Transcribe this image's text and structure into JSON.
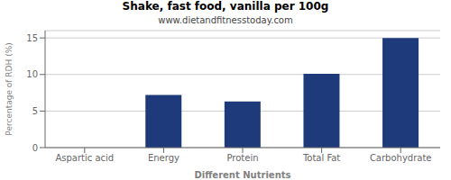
{
  "chart_data": {
    "type": "bar",
    "title": "Shake, fast food, vanilla per 100g",
    "subtitle": "www.dietandfitnesstoday.com",
    "xlabel": "Different Nutrients",
    "ylabel": "Percentage of RDH (%)",
    "categories": [
      "Aspartic acid",
      "Energy",
      "Protein",
      "Total Fat",
      "Carbohydrate"
    ],
    "values": [
      0,
      7.2,
      6.3,
      10.1,
      15.0
    ],
    "color": "#1e3a7a",
    "ylim": [
      0,
      16
    ],
    "yticks": [
      0,
      5,
      10,
      15
    ],
    "grid": true
  }
}
